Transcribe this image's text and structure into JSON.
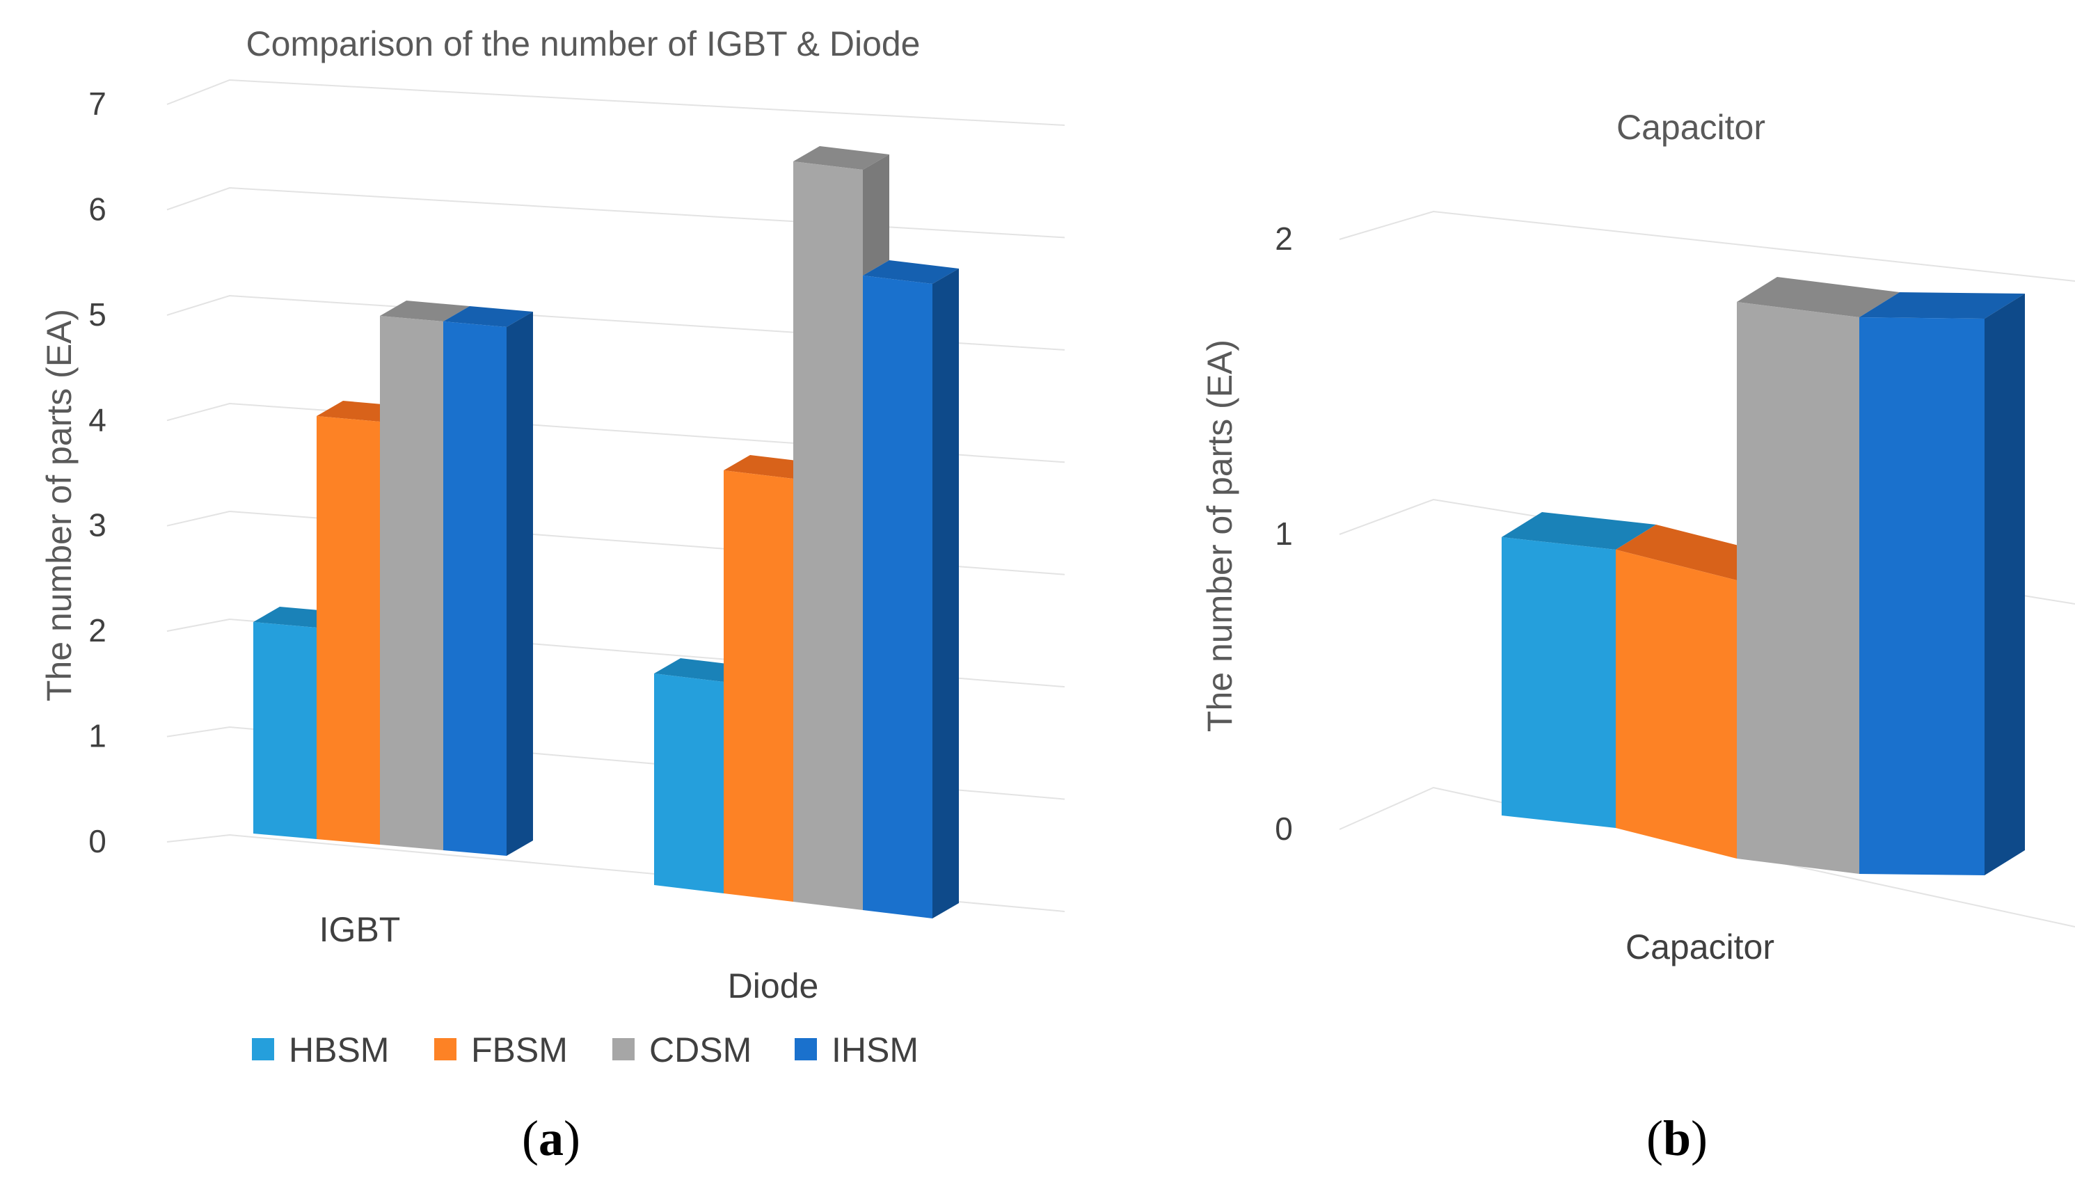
{
  "series_colors": {
    "HBSM": [
      "#259fdc",
      "#1a82b8",
      "#1a7ab0"
    ],
    "FBSM": [
      "#fd8225",
      "#d8621a",
      "#c85a16"
    ],
    "CDSM": [
      "#a6a6a6",
      "#888888",
      "#7a7a7a"
    ],
    "IHSM": [
      "#1a71cd",
      "#1560b0",
      "#0e4a8a"
    ]
  },
  "chart_data": [
    {
      "type": "bar",
      "title": "Comparison of the number of IGBT & Diode",
      "ylabel": "The number of parts (EA)",
      "xlabel": "",
      "categories": [
        "IGBT",
        "Diode"
      ],
      "series": [
        {
          "name": "HBSM",
          "values": [
            2,
            2
          ]
        },
        {
          "name": "FBSM",
          "values": [
            4,
            4
          ]
        },
        {
          "name": "CDSM",
          "values": [
            5,
            7
          ]
        },
        {
          "name": "IHSM",
          "values": [
            5,
            6
          ]
        }
      ],
      "yticks": [
        "0",
        "1",
        "2",
        "3",
        "4",
        "5",
        "6",
        "7"
      ],
      "ylim": [
        0,
        7
      ],
      "legend": [
        "HBSM",
        "FBSM",
        "CDSM",
        "IHSM"
      ],
      "legend_position": "bottom",
      "caption_open": "(",
      "caption_letter": "a",
      "caption_close": ")"
    },
    {
      "type": "bar",
      "title": "Capacitor",
      "ylabel": "The number of parts (EA)",
      "xlabel": "",
      "categories": [
        "Capacitor"
      ],
      "series": [
        {
          "name": "HBSM",
          "values": [
            1
          ]
        },
        {
          "name": "FBSM",
          "values": [
            1
          ]
        },
        {
          "name": "CDSM",
          "values": [
            2
          ]
        },
        {
          "name": "IHSM",
          "values": [
            2
          ]
        }
      ],
      "yticks": [
        "0",
        "1",
        "2"
      ],
      "ylim": [
        0,
        2
      ],
      "caption_open": "(",
      "caption_letter": "b",
      "caption_close": ")"
    }
  ]
}
